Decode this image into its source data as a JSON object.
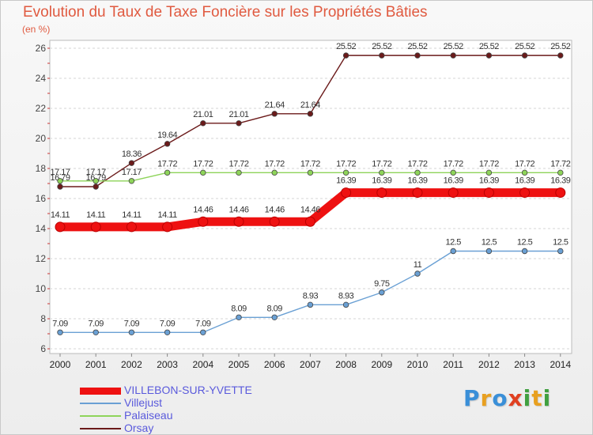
{
  "header": {
    "title": "Evolution du Taux de Taxe Foncière sur les Propriétés Bâties",
    "unit": "(en %)"
  },
  "logo": {
    "text": "Proxiti",
    "letters": [
      {
        "ch": "P",
        "color": "#3a8fd8"
      },
      {
        "ch": "r",
        "color": "#e8a020"
      },
      {
        "ch": "o",
        "color": "#3a8fd8"
      },
      {
        "ch": "x",
        "color": "#e04020"
      },
      {
        "ch": "i",
        "color": "#40a040"
      },
      {
        "ch": "t",
        "color": "#e8a020"
      },
      {
        "ch": "i",
        "color": "#40a040"
      }
    ]
  },
  "chart_data": {
    "type": "line",
    "title": "Evolution du Taux de Taxe Foncière sur les Propriétés Bâties",
    "ylabel": "(en %)",
    "x": [
      "2000",
      "2001",
      "2002",
      "2003",
      "2004",
      "2005",
      "2006",
      "2007",
      "2008",
      "2009",
      "2010",
      "2011",
      "2012",
      "2013",
      "2014"
    ],
    "ylim": [
      6,
      26
    ],
    "yticks": [
      6,
      8,
      10,
      12,
      14,
      16,
      18,
      20,
      22,
      24,
      26
    ],
    "grid": "horizontal-dashed",
    "legend": "bottom-left",
    "series": [
      {
        "name": "Orsay",
        "color": "#6b1a1a",
        "thickness": "thin",
        "values": [
          16.79,
          16.79,
          18.36,
          19.64,
          21.01,
          21.01,
          21.64,
          21.64,
          25.52,
          25.52,
          25.52,
          25.52,
          25.52,
          25.52,
          25.52
        ],
        "labels": [
          "16.79",
          "16.79",
          "18.36",
          "19.64",
          "21.01",
          "21.01",
          "21.64",
          "21.64",
          "25.52",
          "25.52",
          "25.52",
          "25.52",
          "25.52",
          "25.52",
          "25.52"
        ]
      },
      {
        "name": "Palaiseau",
        "color": "#8ed45a",
        "thickness": "thin",
        "values": [
          17.17,
          17.17,
          17.17,
          17.72,
          17.72,
          17.72,
          17.72,
          17.72,
          17.72,
          17.72,
          17.72,
          17.72,
          17.72,
          17.72,
          17.72
        ],
        "labels": [
          "17.17",
          "17.17",
          "17.17",
          "17.72",
          "17.72",
          "17.72",
          "17.72",
          "17.72",
          "17.72",
          "17.72",
          "17.72",
          "17.72",
          "17.72",
          "17.72",
          "17.72"
        ]
      },
      {
        "name": "VILLEBON-SUR-YVETTE",
        "color": "#ee1111",
        "thickness": "thick",
        "values": [
          14.11,
          14.11,
          14.11,
          14.11,
          14.46,
          14.46,
          14.46,
          14.46,
          16.39,
          16.39,
          16.39,
          16.39,
          16.39,
          16.39,
          16.39
        ],
        "labels": [
          "14.11",
          "14.11",
          "14.11",
          "14.11",
          "14.46",
          "14.46",
          "14.46",
          "14.46",
          "16.39",
          "16.39",
          "16.39",
          "16.39",
          "16.39",
          "16.39",
          "16.39"
        ]
      },
      {
        "name": "Villejust",
        "color": "#6aa0d4",
        "thickness": "thin",
        "values": [
          7.09,
          7.09,
          7.09,
          7.09,
          7.09,
          8.09,
          8.09,
          8.93,
          8.93,
          9.75,
          11,
          12.5,
          12.5,
          12.5,
          12.5
        ],
        "labels": [
          "7.09",
          "7.09",
          "7.09",
          "7.09",
          "7.09",
          "8.09",
          "8.09",
          "8.93",
          "8.93",
          "9.75",
          "11",
          "12.5",
          "12.5",
          "12.5",
          "12.5"
        ]
      }
    ],
    "legend_order": [
      "VILLEBON-SUR-YVETTE",
      "Villejust",
      "Palaiseau",
      "Orsay"
    ]
  }
}
